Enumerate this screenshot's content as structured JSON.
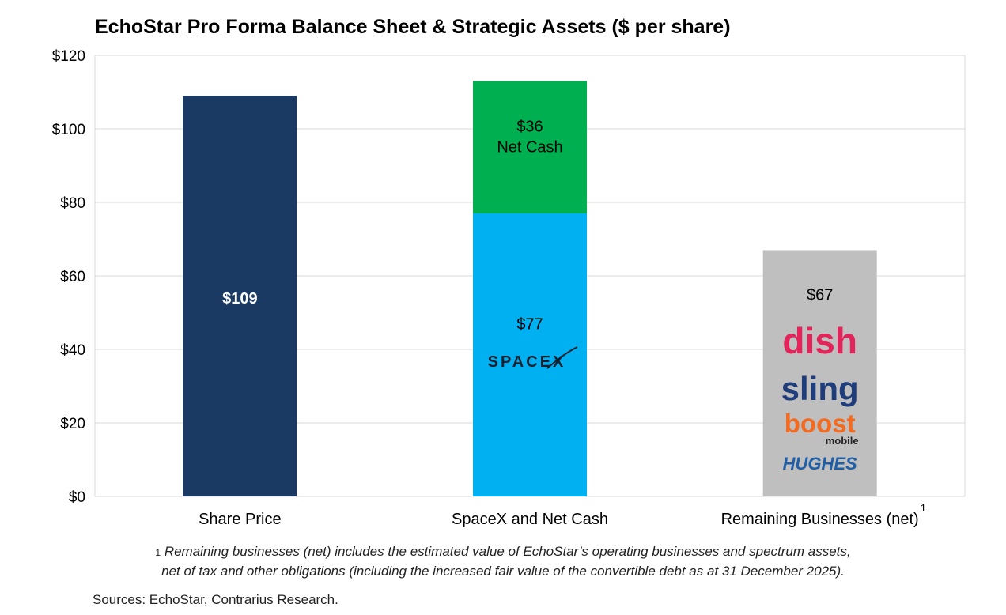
{
  "chart_data": {
    "type": "bar",
    "stacked": true,
    "title": "EchoStar Pro Forma Balance Sheet & Strategic Assets ($ per share)",
    "xlabel": "",
    "ylabel": "",
    "ylim": [
      0,
      120
    ],
    "yticks": [
      0,
      20,
      40,
      60,
      80,
      100,
      120
    ],
    "ytick_labels": [
      "$0",
      "$20",
      "$40",
      "$60",
      "$80",
      "$100",
      "$120"
    ],
    "grid": true,
    "legend": "none",
    "categories": [
      "Share Price",
      "SpaceX and Net Cash",
      "Remaining Businesses (net)"
    ],
    "category_superscripts": [
      "",
      "",
      "1"
    ],
    "segments": [
      {
        "category": "Share Price",
        "value": 109,
        "base": 0,
        "label_lines": [
          "$109"
        ],
        "color": "#1b3a63",
        "label_color": "#ffffff",
        "label_bold": true,
        "label_at": 54
      },
      {
        "category": "SpaceX and Net Cash",
        "value": 77,
        "base": 0,
        "label_lines": [
          "$77"
        ],
        "color": "#00b0f0",
        "label_color": "#000000",
        "label_bold": false,
        "label_at": 47,
        "logos": [
          "SPACEX"
        ]
      },
      {
        "category": "SpaceX and Net Cash",
        "value": 36,
        "base": 77,
        "label_lines": [
          "$36",
          "Net Cash"
        ],
        "color": "#00b050",
        "label_color": "#000000",
        "label_bold": false,
        "label_at": 98
      },
      {
        "category": "Remaining Businesses (net)",
        "value": 67,
        "base": 0,
        "label_lines": [
          "$67"
        ],
        "color": "#bfbfbf",
        "label_color": "#000000",
        "label_bold": false,
        "label_at": 55,
        "logos": [
          "dish",
          "sling",
          "boost",
          "HUGHES"
        ]
      }
    ],
    "logo_text": {
      "boost_sub": "mobile"
    },
    "colors": {
      "grid": "#d9d9d9",
      "axis_text": "#000000",
      "dish": "#e3245a",
      "sling": "#1f3d7a",
      "boost": "#f26b21",
      "hughes": "#1f5fa8",
      "spacex": "#1a1f2e"
    }
  },
  "footnote": {
    "superscript": "1",
    "line1": "Remaining businesses (net) includes the estimated value of EchoStar’s operating businesses and spectrum assets,",
    "line2": "net of tax and other obligations (including the increased fair value of the convertible debt as at 31 December 2025)."
  },
  "sources": "Sources: EchoStar, Contrarius Research."
}
